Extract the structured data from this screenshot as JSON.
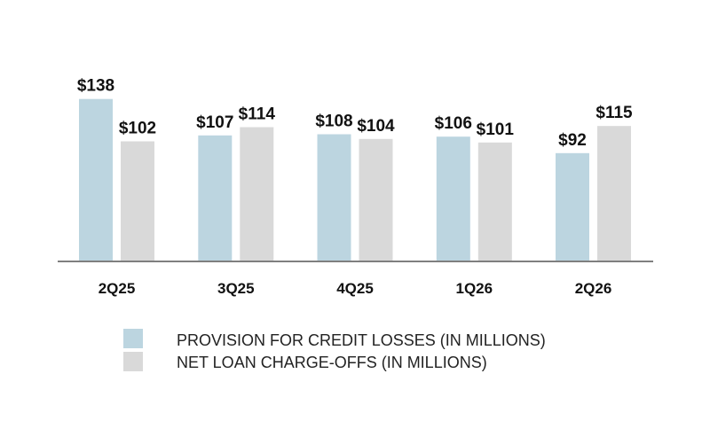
{
  "chart_data": {
    "type": "bar",
    "categories": [
      "2Q25",
      "3Q25",
      "4Q25",
      "1Q26",
      "2Q26"
    ],
    "series": [
      {
        "name": "PROVISION FOR CREDIT LOSSES (IN MILLIONS)",
        "values": [
          138,
          107,
          108,
          106,
          92
        ],
        "labels": [
          "$138",
          "$107",
          "$108",
          "$106",
          "$92"
        ],
        "color": "#bcd5e0"
      },
      {
        "name": "NET LOAN CHARGE-OFFS (IN MILLIONS)",
        "values": [
          102,
          114,
          104,
          101,
          115
        ],
        "labels": [
          "$102",
          "$114",
          "$104",
          "$101",
          "$115"
        ],
        "color": "#d9d9d9"
      }
    ],
    "ylim": [
      0,
      140
    ],
    "grid": false,
    "legend": "bottom",
    "axis_color": "#7f7f7f"
  }
}
